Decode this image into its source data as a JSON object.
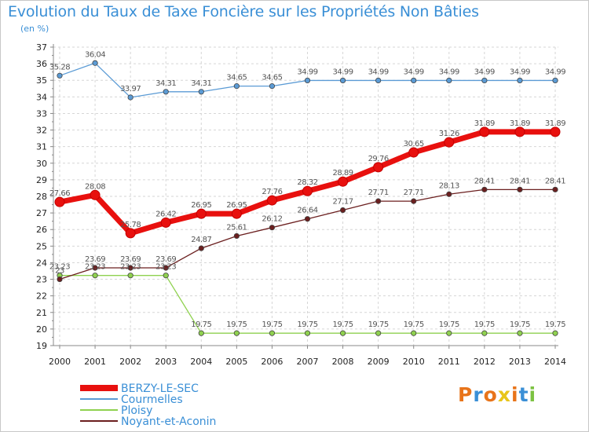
{
  "header": {
    "title": "Evolution du Taux de Taxe Foncière sur les Propriétés Non Bâties",
    "subtitle": "(en %)"
  },
  "logo": {
    "letters": [
      "P",
      "r",
      "o",
      "x",
      "i",
      "t",
      "i"
    ],
    "colors": [
      "#e8741a",
      "#3a8fd6",
      "#e8741a",
      "#e8c51a",
      "#e8741a",
      "#3a8fd6",
      "#7cc242"
    ]
  },
  "chart_data": {
    "type": "line",
    "title": "Evolution du Taux de Taxe Foncière sur les Propriétés Non Bâties",
    "ylabel": "(en %)",
    "xlabel": "",
    "categories": [
      "2000",
      "2001",
      "2002",
      "2003",
      "2004",
      "2005",
      "2006",
      "2007",
      "2008",
      "2009",
      "2010",
      "2011",
      "2012",
      "2013",
      "2014"
    ],
    "ylim": [
      19,
      37
    ],
    "yticks": [
      19,
      20,
      21,
      22,
      23,
      24,
      25,
      26,
      27,
      28,
      29,
      30,
      31,
      32,
      33,
      34,
      35,
      36,
      37
    ],
    "grid": true,
    "legend_position": "bottom-left",
    "series": [
      {
        "name": "BERZY-LE-SEC",
        "color": "#e8100e",
        "emphasis": "thick",
        "values": [
          27.66,
          28.08,
          25.78,
          26.42,
          26.95,
          26.95,
          27.76,
          28.32,
          28.89,
          29.76,
          30.65,
          31.26,
          31.89,
          31.89,
          31.89
        ],
        "labels": [
          "27.66",
          "28.08",
          "25.78",
          "26.42",
          "26.95",
          "26.95",
          "27.76",
          "28.32",
          "28.89",
          "29.76",
          "30.65",
          "31.26",
          "31.89",
          "31.89",
          "31.89"
        ]
      },
      {
        "name": "Courmelles",
        "color": "#5b9bd5",
        "emphasis": "thin",
        "values": [
          35.28,
          36.04,
          33.97,
          34.31,
          34.31,
          34.65,
          34.65,
          34.99,
          34.99,
          34.99,
          34.99,
          34.99,
          34.99,
          34.99,
          34.99
        ],
        "labels": [
          "35.28",
          "36.04",
          "33.97",
          "34.31",
          "34.31",
          "34.65",
          "34.65",
          "34.99",
          "34.99",
          "34.99",
          "34.99",
          "34.99",
          "34.99",
          "34.99",
          "34.99"
        ]
      },
      {
        "name": "Ploisy",
        "color": "#8fd14f",
        "emphasis": "thin",
        "values": [
          23.23,
          23.23,
          23.23,
          23.23,
          19.75,
          19.75,
          19.75,
          19.75,
          19.75,
          19.75,
          19.75,
          19.75,
          19.75,
          19.75,
          19.75
        ],
        "labels": [
          "23.23",
          "23.23",
          "23.23",
          "23.23",
          "19.75",
          "19.75",
          "19.75",
          "19.75",
          "19.75",
          "19.75",
          "19.75",
          "19.75",
          "19.75",
          "19.75",
          "19.75"
        ]
      },
      {
        "name": "Noyant-et-Aconin",
        "color": "#6b1f1f",
        "emphasis": "thin",
        "values": [
          23.0,
          23.69,
          23.69,
          23.69,
          24.87,
          25.61,
          26.12,
          26.64,
          27.17,
          27.71,
          27.71,
          28.13,
          28.41,
          28.41,
          28.41
        ],
        "labels": [
          "23",
          "23.69",
          "23.69",
          "23.69",
          "24.87",
          "25.61",
          "26.12",
          "26.64",
          "27.17",
          "27.71",
          "27.71",
          "28.13",
          "28.41",
          "28.41",
          "28.41"
        ]
      }
    ]
  }
}
